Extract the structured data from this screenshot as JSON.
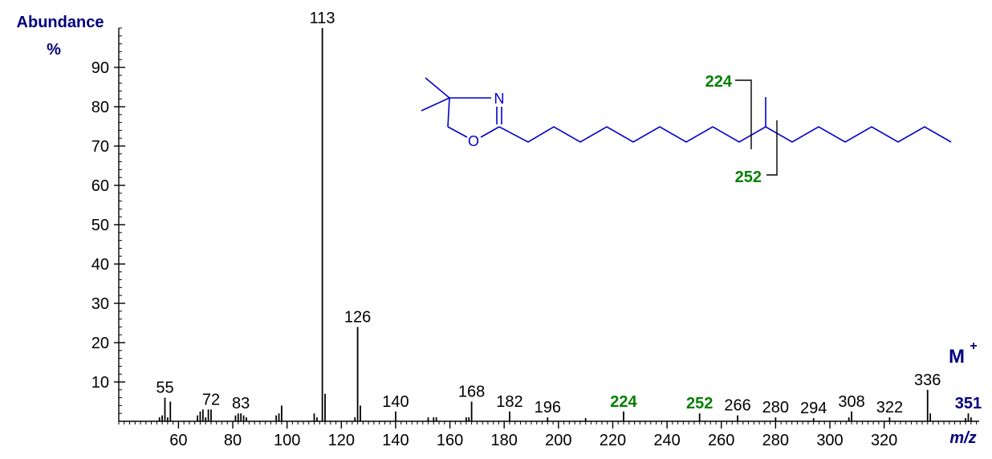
{
  "chart_data": {
    "type": "spectrum",
    "y_title": "Abundance",
    "y_unit": "%",
    "x_title": "m/z",
    "molecular_ion": {
      "text": "M",
      "sup": "+"
    },
    "x": [
      53,
      54,
      55,
      56,
      57,
      67,
      68,
      69,
      70,
      71,
      72,
      81,
      82,
      83,
      84,
      85,
      96,
      97,
      98,
      110,
      111,
      113,
      114,
      125,
      126,
      127,
      140,
      152,
      154,
      155,
      166,
      167,
      168,
      182,
      196,
      210,
      224,
      252,
      266,
      280,
      294,
      307,
      308,
      322,
      336,
      337,
      350,
      351,
      352
    ],
    "values": [
      1,
      1.5,
      6,
      1,
      5,
      1.5,
      2.5,
      3,
      1,
      3,
      3,
      1.5,
      2,
      2,
      1.5,
      1,
      1.5,
      2,
      4,
      2,
      1,
      100,
      7,
      1,
      24,
      4,
      2.5,
      1,
      1,
      1,
      1,
      1,
      5,
      2.5,
      1,
      0.8,
      2.5,
      2,
      1.5,
      1,
      0.8,
      1,
      2.5,
      1,
      8,
      2,
      0.8,
      2,
      1
    ],
    "peak_labels": [
      null,
      null,
      "plain",
      null,
      null,
      null,
      null,
      null,
      null,
      null,
      "plain",
      null,
      null,
      "plain",
      null,
      null,
      null,
      null,
      null,
      null,
      null,
      "plain",
      null,
      null,
      "plain",
      null,
      "plain",
      null,
      null,
      null,
      null,
      null,
      "plain",
      "plain",
      "plain",
      null,
      "fragment",
      "fragment",
      "plain",
      "plain",
      "plain",
      null,
      "plain",
      "plain",
      "plain",
      null,
      null,
      "molecular",
      null
    ],
    "color": "#000000",
    "fragment_color": "#008000",
    "molecular_color": "#00007f",
    "xlim": [
      38,
      355
    ],
    "xticks": [
      60,
      80,
      100,
      120,
      140,
      160,
      180,
      200,
      220,
      240,
      260,
      280,
      300,
      320
    ],
    "ylim": [
      0,
      100
    ],
    "yticks": [
      10,
      20,
      30,
      40,
      50,
      60,
      70,
      80,
      90
    ],
    "minor_step": 2
  },
  "structure": {
    "n": "N",
    "o": "O",
    "cleavage_1": "224",
    "cleavage_2": "252"
  }
}
